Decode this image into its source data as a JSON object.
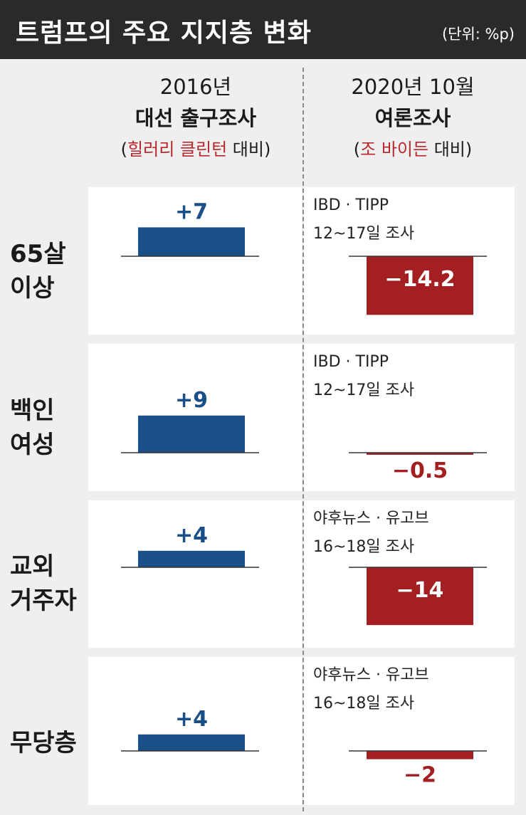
{
  "header": {
    "title": "트럼프의 주요 지지층 변화",
    "unit": "(단위: %p)"
  },
  "columns": {
    "left": {
      "line1": "2016년",
      "line2": "대선 출구조사",
      "paren_open": "(",
      "compare_name": "힐러리 클린턴",
      "compare_suffix": " 대비)"
    },
    "right": {
      "line1": "2020년 10월",
      "line2": "여론조사",
      "paren_open": "(",
      "compare_name": "조 바이든",
      "compare_suffix": " 대비)"
    }
  },
  "colors": {
    "positive": "#1b4f88",
    "negative": "#a31f22",
    "header_bg": "#2b2a2a",
    "panel_bg": "#efefef"
  },
  "rows": [
    {
      "label": [
        "65살",
        "이상"
      ],
      "left_text": "+7",
      "right_text": "−14.2",
      "survey": [
        "IBD · TIPP",
        "12~17일 조사"
      ]
    },
    {
      "label": [
        "백인",
        "여성"
      ],
      "left_text": "+9",
      "right_text": "−0.5",
      "survey": [
        "IBD · TIPP",
        "12~17일 조사"
      ]
    },
    {
      "label": [
        "교외",
        "거주자"
      ],
      "left_text": "+4",
      "right_text": "−14",
      "survey": [
        "야후뉴스 · 유고브",
        "16~18일 조사"
      ]
    },
    {
      "label": [
        "무당층"
      ],
      "left_text": "+4",
      "right_text": "−2",
      "survey": [
        "야후뉴스 · 유고브",
        "16~18일 조사"
      ]
    }
  ],
  "chart_data": {
    "type": "bar",
    "categories": [
      "65살 이상",
      "백인 여성",
      "교외 거주자",
      "무당층"
    ],
    "series": [
      {
        "name": "2016년 대선 출구조사 (힐러리 클린턴 대비)",
        "values": [
          7,
          9,
          4,
          4
        ]
      },
      {
        "name": "2020년 10월 여론조사 (조 바이든 대비)",
        "values": [
          -14.2,
          -0.5,
          -14,
          -2
        ]
      }
    ],
    "title": "트럼프의 주요 지지층 변화",
    "ylabel": "%p"
  }
}
